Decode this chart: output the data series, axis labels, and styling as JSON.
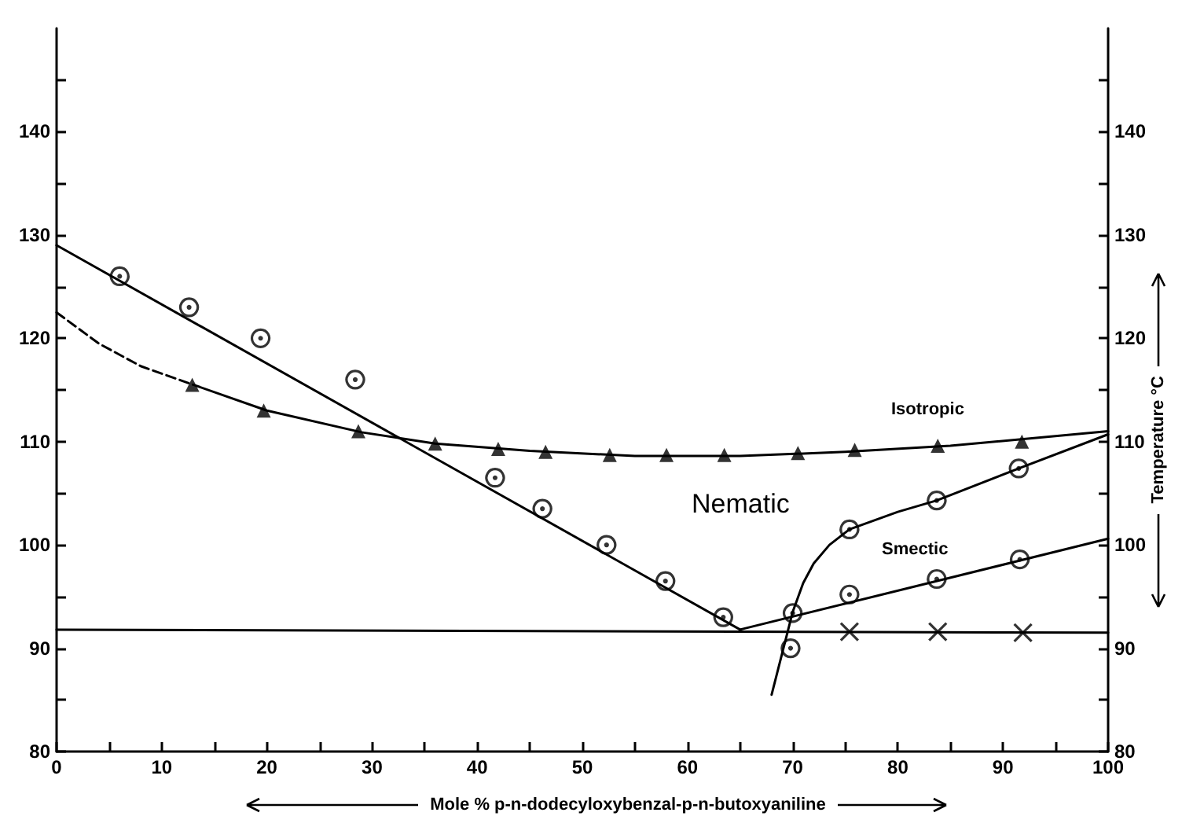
{
  "chart_data": {
    "type": "scatter",
    "xlabel": "Mole % p-n-dodecyloxybenzal-p-n-butoxyaniline",
    "y2label": "Temperature °C",
    "xlim": [
      0,
      100
    ],
    "xticks": [
      0,
      {
        "value": 5,
        "label": null
      },
      10,
      {
        "value": 15,
        "label": null
      },
      20,
      {
        "value": 25,
        "label": null
      },
      30,
      {
        "value": 35,
        "label": null
      },
      40,
      {
        "value": 45,
        "label": null
      },
      50,
      {
        "value": 55,
        "label": null
      },
      60,
      {
        "value": 65,
        "label": null
      },
      70,
      {
        "value": 75,
        "label": null
      },
      80,
      {
        "value": 85,
        "label": null
      },
      90,
      {
        "value": 95,
        "label": null
      },
      100
    ],
    "ylim": [
      80,
      150
    ],
    "yticks": [
      80,
      {
        "value": 85,
        "label": null
      },
      90,
      {
        "value": 95,
        "label": null
      },
      100,
      {
        "value": 105,
        "label": null
      },
      110,
      {
        "value": 115,
        "label": null
      },
      120,
      {
        "value": 125,
        "label": null
      },
      130,
      {
        "value": 135,
        "label": null
      },
      140,
      {
        "value": 145,
        "label": null
      }
    ],
    "y2lim": [
      80,
      150
    ],
    "y2ticks": [
      80,
      {
        "value": 85,
        "label": null
      },
      90,
      {
        "value": 95,
        "label": null
      },
      100,
      {
        "value": 105,
        "label": null
      },
      110,
      {
        "value": 115,
        "label": null
      },
      120,
      {
        "value": 125,
        "label": null
      },
      130,
      {
        "value": 135,
        "label": null
      },
      140,
      {
        "value": 145,
        "label": null
      }
    ],
    "grid": false,
    "series": [
      {
        "type": "line",
        "color": "#000000",
        "marker": "none",
        "line_style": "solid",
        "x": [
          0,
          65
        ],
        "values": [
          129,
          91.8
        ]
      },
      {
        "type": "line",
        "color": "#000000",
        "marker": "none",
        "line_style": "dashed",
        "x": [
          0,
          4,
          8,
          13
        ],
        "values": [
          122.5,
          119.5,
          117.3,
          115.5
        ]
      },
      {
        "type": "line",
        "color": "#000000",
        "marker": "none",
        "line_style": "solid",
        "x": [
          13,
          20,
          29,
          36,
          45,
          55,
          65,
          75,
          85,
          100
        ],
        "values": [
          115.5,
          113,
          110.9,
          109.8,
          109.1,
          108.6,
          108.6,
          109,
          109.6,
          111
        ]
      },
      {
        "type": "line",
        "color": "#000000",
        "marker": "none",
        "line_style": "solid",
        "x": [
          68,
          69,
          70,
          71,
          72,
          73.5,
          75.4,
          80,
          83.7,
          91.5,
          100
        ],
        "values": [
          85.5,
          89.5,
          93.5,
          96.3,
          98.2,
          100,
          101.5,
          103.2,
          104.3,
          107.4,
          110.7
        ]
      },
      {
        "type": "line",
        "color": "#000000",
        "marker": "none",
        "line_style": "solid",
        "x": [
          65,
          100
        ],
        "values": [
          91.8,
          100.6
        ]
      },
      {
        "type": "line",
        "color": "#000000",
        "marker": "none",
        "line_style": "solid",
        "x": [
          0,
          100
        ],
        "values": [
          91.8,
          91.5
        ]
      },
      {
        "type": "scatter",
        "color": "#000000",
        "marker": "circle",
        "x": [
          6,
          12.6,
          19.4,
          28.4,
          41.7,
          46.2,
          52.3,
          57.9,
          63.4
        ],
        "values": [
          126,
          123,
          120,
          116,
          106.5,
          103.5,
          100,
          96.5,
          93
        ]
      },
      {
        "type": "scatter",
        "color": "#000000",
        "marker": "triangle",
        "x": [
          12.9,
          19.7,
          28.7,
          36,
          42,
          46.5,
          52.6,
          58,
          63.5,
          70.5,
          75.9,
          83.8,
          91.8
        ],
        "values": [
          115.5,
          113,
          111,
          109.8,
          109.3,
          109,
          108.7,
          108.7,
          108.7,
          108.9,
          109.2,
          109.6,
          110
        ]
      },
      {
        "type": "scatter",
        "color": "#000000",
        "marker": "circle",
        "x": [
          69.8,
          75.4,
          83.7,
          91.5
        ],
        "values": [
          90,
          101.5,
          104.3,
          107.4
        ]
      },
      {
        "type": "scatter",
        "color": "#000000",
        "marker": "circle",
        "x": [
          70,
          75.4,
          83.7,
          91.6
        ],
        "values": [
          93.4,
          95.2,
          96.7,
          98.6
        ]
      },
      {
        "type": "scatter",
        "color": "#000000",
        "marker": "cross",
        "x": [
          75.4,
          83.8,
          91.9
        ],
        "values": [
          91.6,
          91.6,
          91.5
        ]
      }
    ],
    "annotations": [
      "Isotropic",
      "Nematic",
      "Smectic"
    ]
  }
}
